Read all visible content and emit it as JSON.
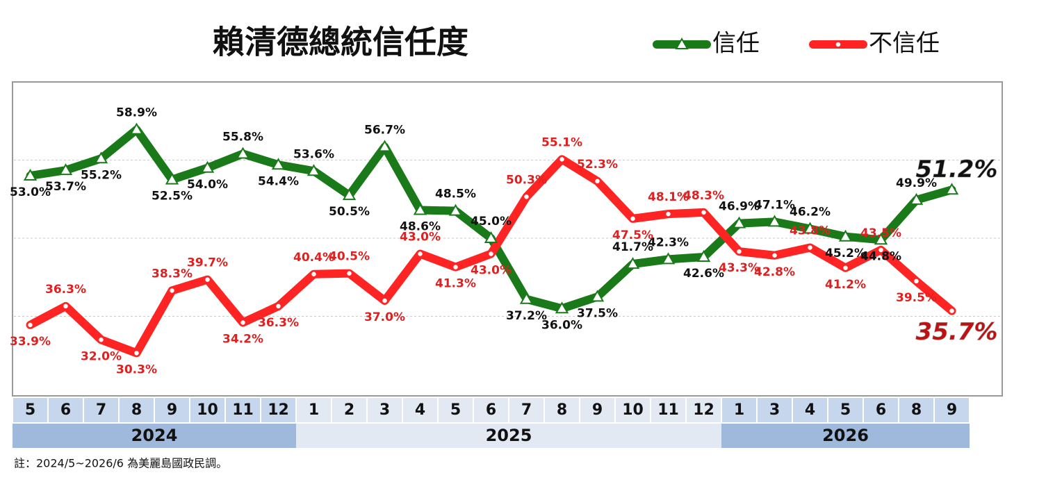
{
  "chart_data": {
    "type": "line",
    "title": "賴清德總統信任度",
    "categories": [
      "5",
      "6",
      "7",
      "8",
      "9",
      "10",
      "11",
      "12",
      "1",
      "2",
      "3",
      "4",
      "5",
      "6",
      "7",
      "8",
      "9",
      "10",
      "11",
      "12",
      "1",
      "3",
      "4",
      "5",
      "6",
      "8",
      "9"
    ],
    "years": [
      "2024",
      "2025",
      "2026"
    ],
    "series": [
      {
        "name": "信任",
        "color": "#1a7a1a",
        "marker": "triangle",
        "values": [
          53.0,
          53.7,
          55.2,
          58.9,
          52.5,
          54.0,
          55.8,
          54.4,
          53.6,
          50.5,
          56.7,
          48.6,
          48.5,
          45.0,
          37.2,
          36.0,
          37.5,
          41.7,
          42.3,
          42.6,
          46.9,
          47.1,
          46.2,
          45.2,
          44.8,
          49.9,
          51.2
        ],
        "value_labels": [
          "53.0%",
          "53.7%",
          "55.2%",
          "58.9%",
          "52.5%",
          "54.0%",
          "55.8%",
          "54.4%",
          "53.6%",
          "50.5%",
          "56.7%",
          "48.6%",
          "48.5%",
          "45.0%",
          "37.2%",
          "36.0%",
          "37.5%",
          "41.7%",
          "42.3%",
          "42.6%",
          "46.9%",
          "47.1%",
          "46.2%",
          "45.2%",
          "44.8%",
          "49.9%",
          "51.2%"
        ]
      },
      {
        "name": "不信任",
        "color": "#ff2424",
        "marker": "circle",
        "values": [
          33.9,
          36.3,
          32.0,
          30.3,
          38.3,
          39.7,
          34.2,
          36.3,
          40.4,
          40.5,
          37.0,
          43.0,
          41.3,
          43.0,
          50.3,
          55.1,
          52.3,
          47.5,
          48.1,
          48.3,
          43.3,
          42.8,
          43.8,
          41.2,
          43.5,
          39.5,
          35.7
        ],
        "value_labels": [
          "33.9%",
          "36.3%",
          "32.0%",
          "30.3%",
          "38.3%",
          "39.7%",
          "34.2%",
          "36.3%",
          "40.4%",
          "40.5%",
          "37.0%",
          "43.0%",
          "41.3%",
          "43.0%",
          "50.3%",
          "55.1%",
          "52.3%",
          "47.5%",
          "48.1%",
          "48.3%",
          "43.3%",
          "42.8%",
          "43.8%",
          "41.2%",
          "43.5%",
          "39.5%",
          "35.7%"
        ]
      }
    ],
    "ylim": [
      25,
      65
    ],
    "yticks": [
      35,
      45,
      55
    ],
    "grid": true,
    "note": "註：2024/5~2026/6 為美麗島國政民調。"
  }
}
